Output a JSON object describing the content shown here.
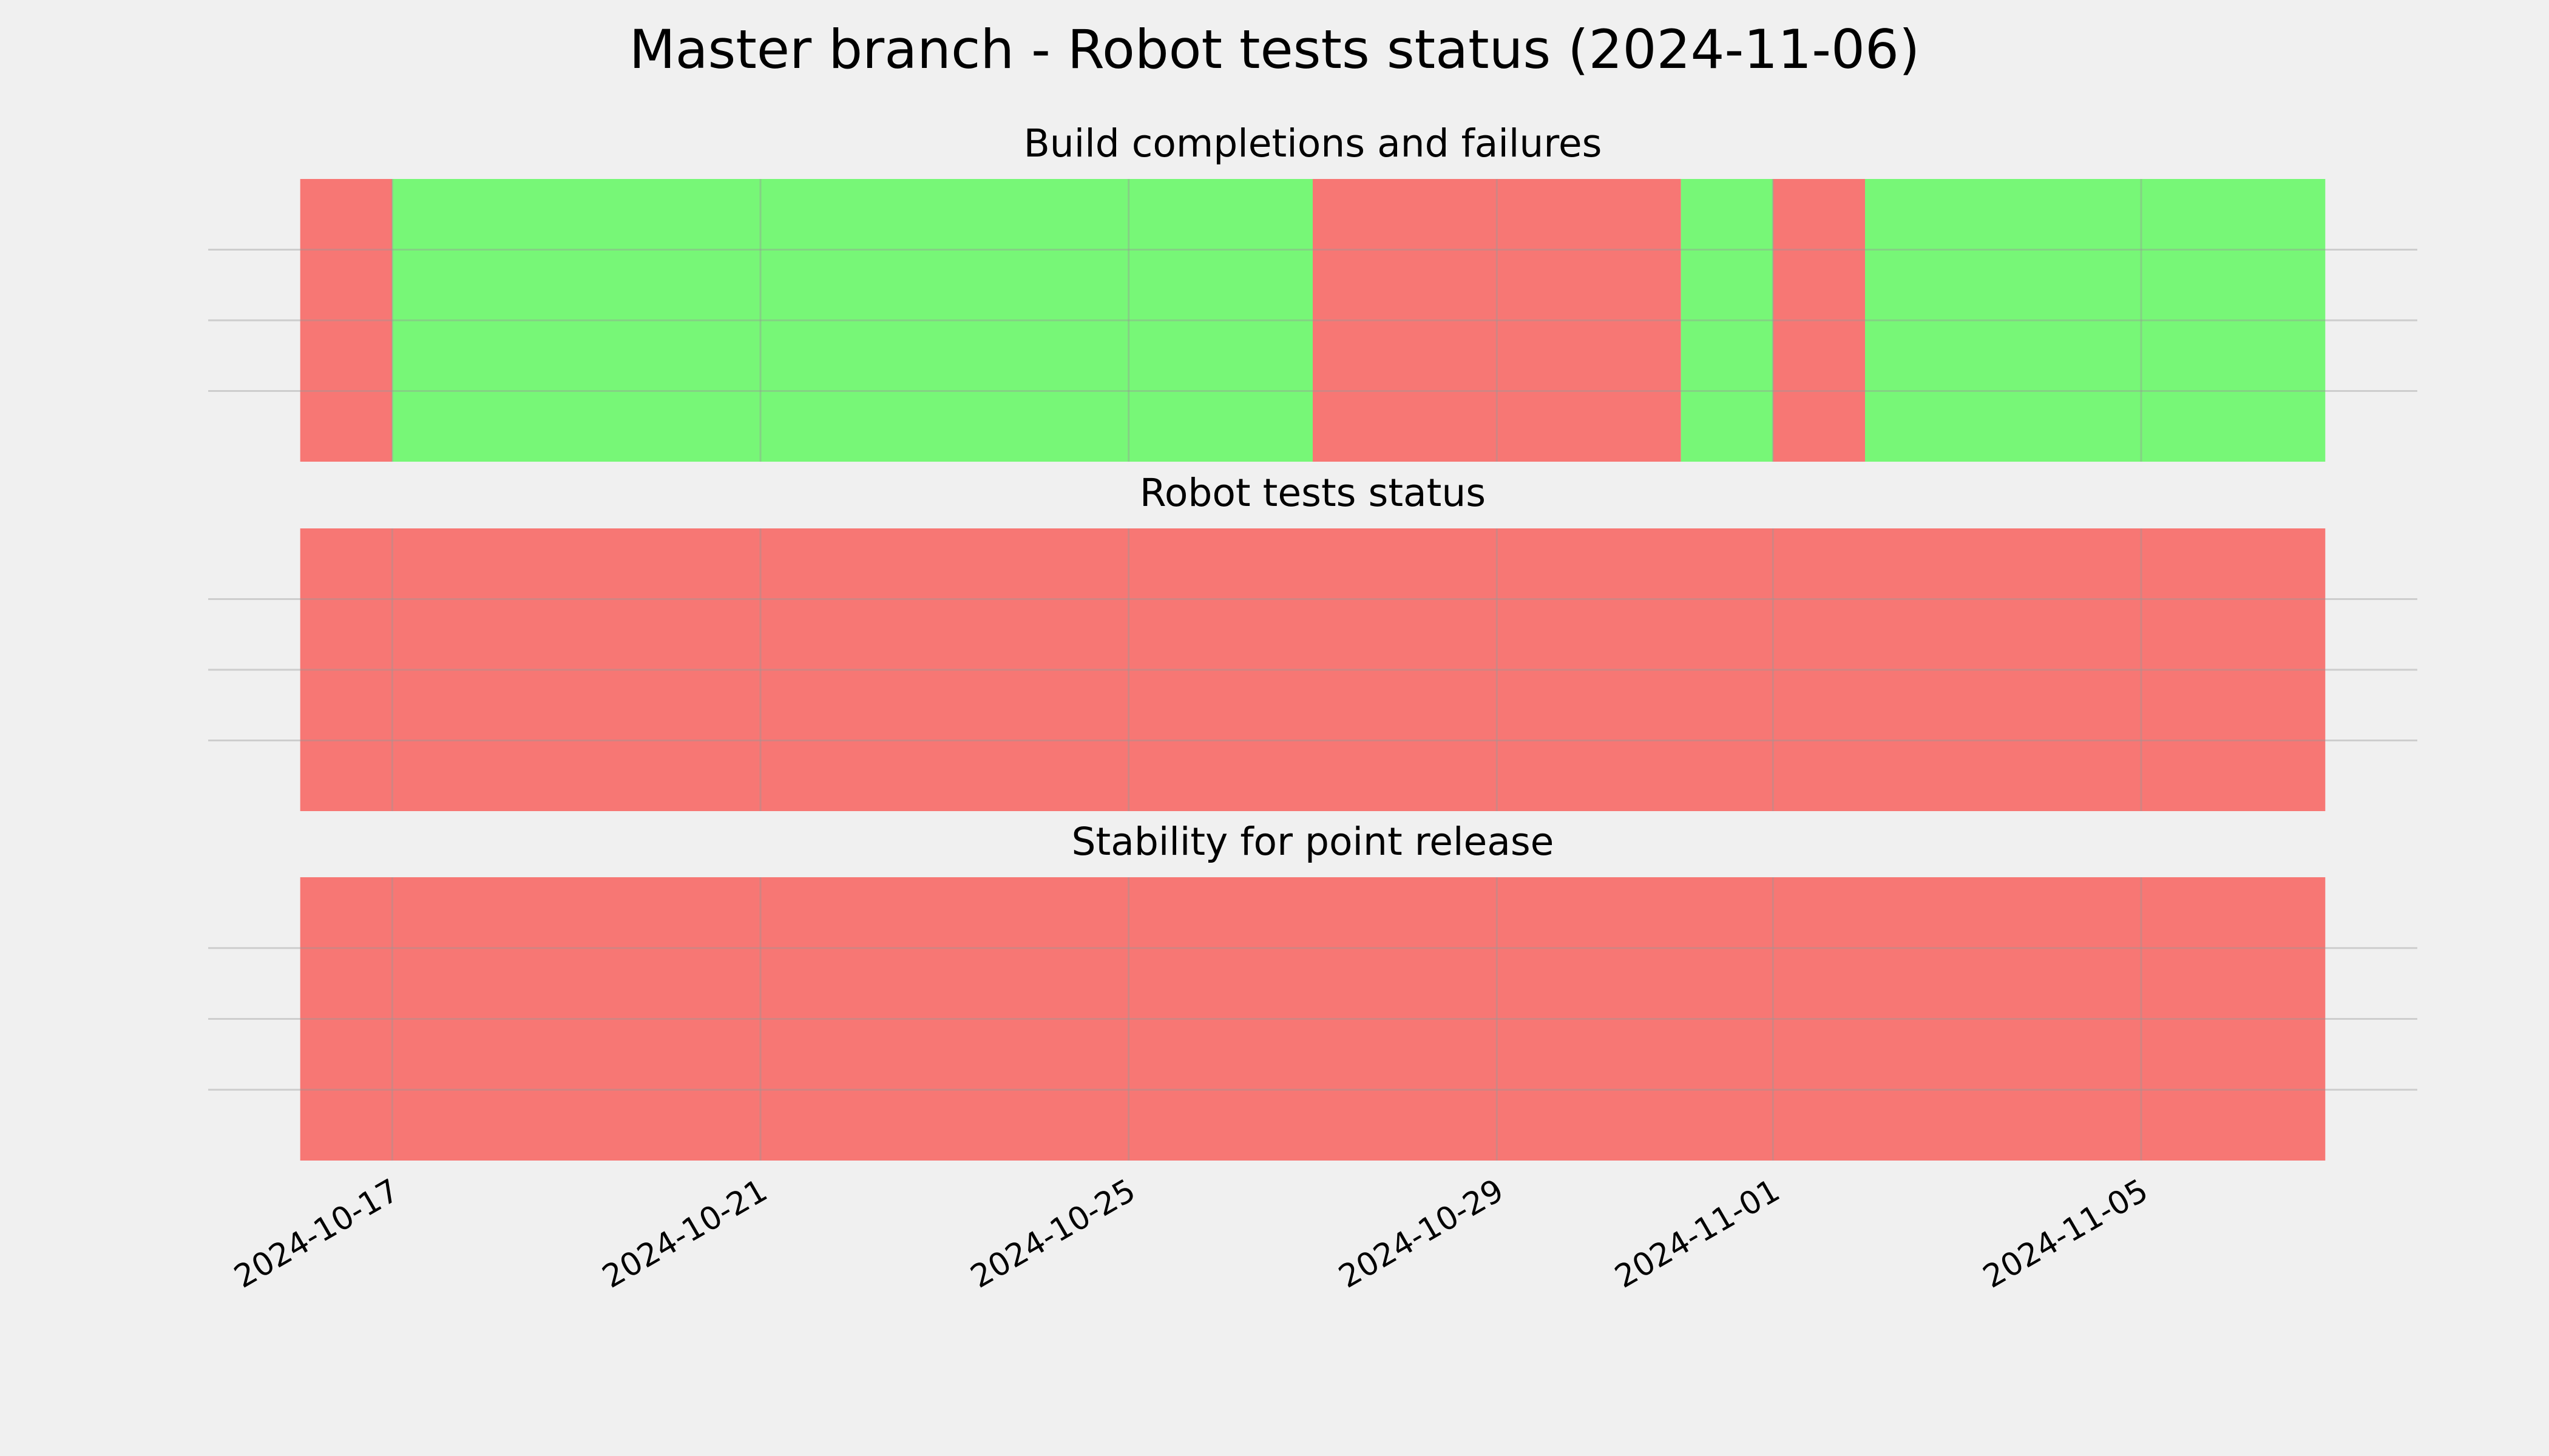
{
  "title": "Master branch - Robot tests status (2024-11-06)",
  "sharex": true,
  "chart_data": [
    {
      "type": "timeline",
      "title": "Build completions and failures",
      "starts": [
        "2024-10-16",
        "2024-10-17",
        "2024-10-27",
        "2024-10-31",
        "2024-11-01",
        "2024-11-02"
      ],
      "ends": [
        "2024-10-17",
        "2024-10-27",
        "2024-10-31",
        "2024-11-01",
        "2024-11-02",
        "2024-11-07"
      ],
      "colors": [
        "#f77774",
        "#77f777",
        "#f77774",
        "#77f777",
        "#f77774",
        "#77f777"
      ],
      "xlim": [
        "2024-10-15",
        "2024-11-08"
      ],
      "xticks": [
        "2024-10-17",
        "2024-10-21",
        "2024-10-25",
        "2024-10-29",
        "2024-11-01",
        "2024-11-05"
      ],
      "ylim": [
        0,
        1
      ],
      "ygrid": [
        0.25,
        0.5,
        0.75
      ]
    },
    {
      "type": "timeline",
      "title": "Robot tests status",
      "starts": [
        "2024-10-16"
      ],
      "ends": [
        "2024-11-07"
      ],
      "colors": [
        "#f77774"
      ],
      "xlim": [
        "2024-10-15",
        "2024-11-08"
      ],
      "xticks": [
        "2024-10-17",
        "2024-10-21",
        "2024-10-25",
        "2024-10-29",
        "2024-11-01",
        "2024-11-05"
      ],
      "ylim": [
        0,
        1
      ],
      "ygrid": [
        0.25,
        0.5,
        0.75
      ]
    },
    {
      "type": "timeline",
      "title": "Stability for point release",
      "starts": [
        "2024-10-16"
      ],
      "ends": [
        "2024-11-07"
      ],
      "colors": [
        "#f77774"
      ],
      "xlim": [
        "2024-10-15",
        "2024-11-08"
      ],
      "xticks": [
        "2024-10-17",
        "2024-10-21",
        "2024-10-25",
        "2024-10-29",
        "2024-11-01",
        "2024-11-05"
      ],
      "ylim": [
        0,
        1
      ],
      "ygrid": [
        0.25,
        0.5,
        0.75
      ]
    }
  ]
}
